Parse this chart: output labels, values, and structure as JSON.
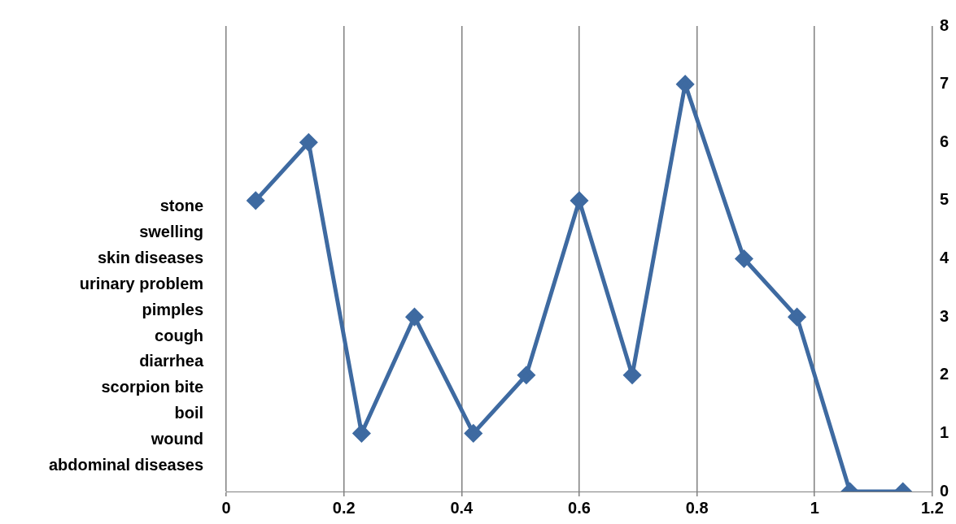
{
  "chart_data": {
    "type": "line",
    "x": [
      0.05,
      0.14,
      0.23,
      0.32,
      0.42,
      0.51,
      0.6,
      0.69,
      0.78,
      0.88,
      0.97,
      1.06,
      1.15
    ],
    "series": [
      {
        "color": "#3e6aa1",
        "values": [
          5,
          6,
          1,
          3,
          1,
          2,
          5,
          2,
          7,
          4,
          3,
          0,
          0
        ]
      }
    ],
    "y_categories": [
      null,
      null,
      null,
      null,
      null,
      null,
      null,
      "stone",
      "swelling",
      "skin diseases",
      "urinary problem",
      "pimples",
      "cough",
      "diarrhea",
      "scorpion bite",
      "boil",
      "wound",
      "abdominal diseases",
      null
    ],
    "xlim": [
      0,
      1.2
    ],
    "xticks": [
      0,
      0.2,
      0.4,
      0.6,
      0.8,
      1,
      1.2
    ],
    "ylim": [
      0,
      8
    ],
    "yticks": [
      0,
      1,
      2,
      3,
      4,
      5,
      6,
      7,
      8
    ],
    "grid": "x",
    "legend": false,
    "marker": "diamond",
    "line_style": "solid"
  }
}
